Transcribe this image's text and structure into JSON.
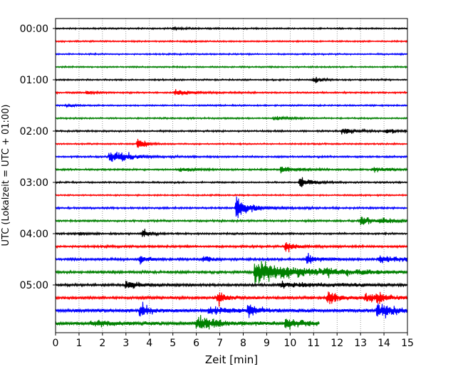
{
  "chart_data": {
    "type": "line",
    "title": "",
    "xlabel": "Zeit  [min]",
    "ylabel": "UTC (Lokalzeit = UTC + 01:00)",
    "xlim": [
      0,
      15
    ],
    "x_ticks": [
      "0",
      "1",
      "2",
      "3",
      "4",
      "5",
      "6",
      "7",
      "8",
      "9",
      "10",
      "11",
      "12",
      "13",
      "14",
      "15"
    ],
    "y_tick_labels": [
      "00:00",
      "01:00",
      "02:00",
      "03:00",
      "04:00",
      "05:00"
    ],
    "grid": "vertical dotted lines at each minute",
    "trace_interval_minutes": 15,
    "colors_cycle": [
      "#000000",
      "#ff0000",
      "#0000ff",
      "#008000"
    ],
    "traces": [
      {
        "start": "00:00",
        "color": "#000000",
        "end_min": 15,
        "noise": 1.0,
        "events": [
          [
            5.0,
            1.5,
            0.4
          ]
        ]
      },
      {
        "start": "00:15",
        "color": "#ff0000",
        "end_min": 15,
        "noise": 1.0,
        "events": []
      },
      {
        "start": "00:30",
        "color": "#0000ff",
        "end_min": 15,
        "noise": 1.0,
        "events": []
      },
      {
        "start": "00:45",
        "color": "#008000",
        "end_min": 15,
        "noise": 1.0,
        "events": []
      },
      {
        "start": "01:00",
        "color": "#000000",
        "end_min": 15,
        "noise": 1.0,
        "events": [
          [
            11.0,
            4.0,
            0.3
          ]
        ]
      },
      {
        "start": "01:15",
        "color": "#ff0000",
        "end_min": 15,
        "noise": 1.1,
        "events": [
          [
            1.3,
            1.5,
            0.5
          ],
          [
            5.1,
            4.0,
            0.6
          ]
        ]
      },
      {
        "start": "01:30",
        "color": "#0000ff",
        "end_min": 15,
        "noise": 1.0,
        "events": [
          [
            0.5,
            1.5,
            0.3
          ]
        ]
      },
      {
        "start": "01:45",
        "color": "#008000",
        "end_min": 15,
        "noise": 1.0,
        "events": [
          [
            9.3,
            2.0,
            0.6
          ]
        ]
      },
      {
        "start": "02:00",
        "color": "#000000",
        "end_min": 15,
        "noise": 1.1,
        "events": [
          [
            12.2,
            4.0,
            0.6
          ],
          [
            14.1,
            3.0,
            0.4
          ]
        ]
      },
      {
        "start": "02:15",
        "color": "#ff0000",
        "end_min": 15,
        "noise": 1.0,
        "events": [
          [
            3.5,
            7.0,
            0.3
          ]
        ]
      },
      {
        "start": "02:30",
        "color": "#0000ff",
        "end_min": 15,
        "noise": 1.2,
        "events": [
          [
            2.3,
            7.0,
            0.5
          ],
          [
            2.7,
            3.0,
            0.8
          ]
        ]
      },
      {
        "start": "02:45",
        "color": "#008000",
        "end_min": 15,
        "noise": 1.2,
        "events": [
          [
            5.3,
            2.5,
            0.5
          ],
          [
            9.6,
            5.0,
            0.5
          ],
          [
            13.5,
            2.5,
            0.8
          ]
        ]
      },
      {
        "start": "03:00",
        "color": "#000000",
        "end_min": 15,
        "noise": 1.0,
        "events": [
          [
            10.4,
            7.0,
            0.5
          ]
        ]
      },
      {
        "start": "03:15",
        "color": "#ff0000",
        "end_min": 15,
        "noise": 1.0,
        "events": []
      },
      {
        "start": "03:30",
        "color": "#0000ff",
        "end_min": 15,
        "noise": 1.2,
        "events": [
          [
            7.7,
            20.0,
            0.3
          ],
          [
            8.2,
            2.5,
            1.0
          ]
        ]
      },
      {
        "start": "03:45",
        "color": "#008000",
        "end_min": 15,
        "noise": 1.3,
        "events": [
          [
            13.0,
            5.0,
            0.5
          ],
          [
            13.8,
            2.5,
            1.0
          ]
        ]
      },
      {
        "start": "04:00",
        "color": "#000000",
        "end_min": 15,
        "noise": 1.2,
        "events": [
          [
            3.7,
            6.0,
            0.3
          ],
          [
            1.0,
            1.5,
            0.4
          ]
        ]
      },
      {
        "start": "04:15",
        "color": "#ff0000",
        "end_min": 15,
        "noise": 1.5,
        "events": [
          [
            9.8,
            7.0,
            0.4
          ]
        ]
      },
      {
        "start": "04:30",
        "color": "#0000ff",
        "end_min": 15,
        "noise": 1.6,
        "events": [
          [
            3.6,
            6.0,
            0.3
          ],
          [
            6.3,
            4.0,
            0.3
          ],
          [
            10.7,
            7.0,
            0.4
          ],
          [
            13.8,
            4.0,
            1.0
          ]
        ]
      },
      {
        "start": "04:45",
        "color": "#008000",
        "end_min": 15,
        "noise": 1.8,
        "events": [
          [
            8.5,
            14.0,
            1.5
          ],
          [
            11.5,
            2.5,
            2.0
          ]
        ]
      },
      {
        "start": "05:00",
        "color": "#000000",
        "end_min": 15,
        "noise": 1.8,
        "events": [
          [
            3.0,
            5.0,
            0.5
          ],
          [
            9.5,
            2.5,
            2.0
          ]
        ]
      },
      {
        "start": "05:15",
        "color": "#ff0000",
        "end_min": 15,
        "noise": 1.9,
        "events": [
          [
            6.9,
            9.0,
            0.3
          ],
          [
            11.6,
            9.0,
            0.4
          ],
          [
            13.2,
            4.0,
            1.0
          ],
          [
            13.7,
            6.0,
            0.3
          ]
        ]
      },
      {
        "start": "05:30",
        "color": "#0000ff",
        "end_min": 15,
        "noise": 2.2,
        "events": [
          [
            3.6,
            10.0,
            0.3
          ],
          [
            6.5,
            4.0,
            1.0
          ],
          [
            8.2,
            8.0,
            0.4
          ],
          [
            13.7,
            8.0,
            0.4
          ],
          [
            14.0,
            3.5,
            0.8
          ]
        ]
      },
      {
        "start": "05:45",
        "color": "#008000",
        "end_min": 11.25,
        "noise": 2.4,
        "events": [
          [
            1.5,
            2.5,
            1.0
          ],
          [
            6.0,
            8.0,
            0.8
          ],
          [
            9.8,
            6.0,
            0.8
          ]
        ]
      }
    ]
  }
}
